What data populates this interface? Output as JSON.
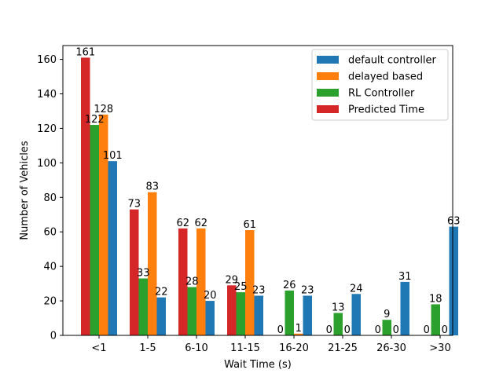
{
  "chart_data": {
    "type": "bar",
    "title": "",
    "xlabel": "Wait Time (s)",
    "ylabel": "Number of Vehicles",
    "ylim": [
      0,
      168
    ],
    "yticks": [
      0,
      20,
      40,
      60,
      80,
      100,
      120,
      140,
      160
    ],
    "grid": false,
    "legend_position": "top-right",
    "categories": [
      "<1",
      "1-5",
      "6-10",
      "11-15",
      "16-20",
      "21-25",
      "26-30",
      ">30"
    ],
    "series": [
      {
        "name": "default controller",
        "color": "#1f77b4",
        "values": [
          101,
          22,
          20,
          23,
          23,
          24,
          31,
          63
        ]
      },
      {
        "name": "delayed based",
        "color": "#ff7f0e",
        "values": [
          128,
          83,
          62,
          61,
          1,
          0,
          0,
          0
        ]
      },
      {
        "name": "RL Controller",
        "color": "#2ca02c",
        "values": [
          122,
          33,
          28,
          25,
          26,
          13,
          9,
          18
        ]
      },
      {
        "name": "Predicted Time",
        "color": "#d62728",
        "values": [
          161,
          73,
          62,
          29,
          0,
          0,
          0,
          0
        ]
      }
    ]
  }
}
